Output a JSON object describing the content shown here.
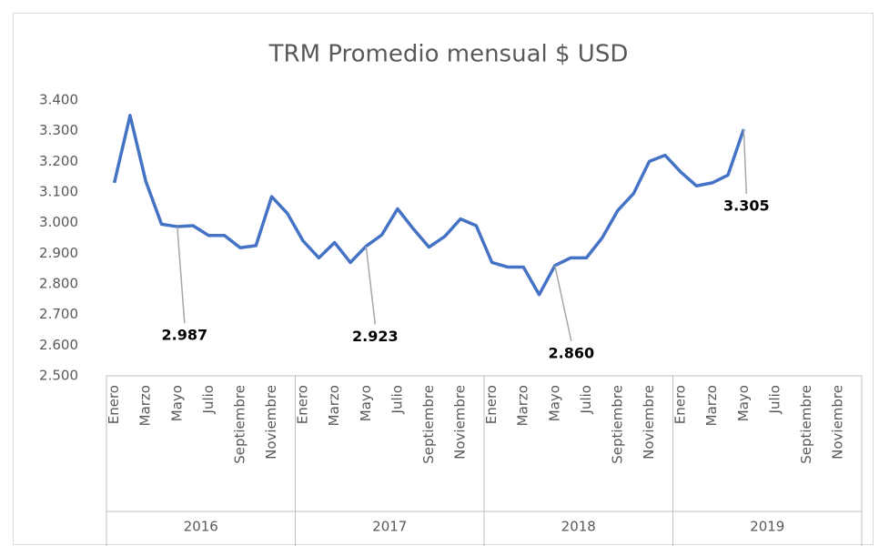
{
  "chart_data": {
    "type": "line",
    "title": "TRM Promedio mensual $ USD",
    "categories": [
      "Enero",
      null,
      "Marzo",
      null,
      "Mayo",
      null,
      "Julio",
      null,
      "Septiembre",
      null,
      "Noviembre",
      null,
      "Enero",
      null,
      "Marzo",
      null,
      "Mayo",
      null,
      "Julio",
      null,
      "Septiembre",
      null,
      "Noviembre",
      null,
      "Enero",
      null,
      "Marzo",
      null,
      "Mayo",
      null,
      "Julio",
      null,
      "Septiembre",
      null,
      "Noviembre",
      null,
      "Enero",
      null,
      "Marzo",
      null,
      "Mayo",
      null,
      "Julio",
      null,
      "Septiembre",
      null,
      "Noviembre",
      null
    ],
    "groups": [
      "2016",
      "2017",
      "2018",
      "2019"
    ],
    "series": [
      {
        "name": "TRM",
        "color": "#4472c4",
        "values": [
          3130,
          3350,
          3135,
          2995,
          2987,
          2990,
          2958,
          2958,
          2918,
          2925,
          3085,
          3030,
          2940,
          2885,
          2935,
          2870,
          2923,
          2960,
          3045,
          2980,
          2920,
          2955,
          3012,
          2990,
          2870,
          2855,
          2855,
          2765,
          2860,
          2885,
          2885,
          2950,
          3040,
          3095,
          3200,
          3220,
          3165,
          3120,
          3130,
          3155,
          3305,
          null,
          null,
          null,
          null,
          null,
          null,
          null
        ],
        "value_labels": [
          null,
          null,
          null,
          null,
          "2.987",
          null,
          null,
          null,
          null,
          null,
          null,
          null,
          null,
          null,
          null,
          null,
          "2.923",
          null,
          null,
          null,
          null,
          null,
          null,
          null,
          null,
          null,
          null,
          null,
          "2.860",
          null,
          null,
          null,
          null,
          null,
          null,
          null,
          null,
          null,
          null,
          null,
          "3.305",
          null,
          null,
          null,
          null,
          null,
          null,
          null
        ]
      }
    ],
    "ylim": [
      2500,
      3400
    ],
    "yticks": [
      {
        "value": 2500,
        "label": "2.500"
      },
      {
        "value": 2600,
        "label": "2.600"
      },
      {
        "value": 2700,
        "label": "2.700"
      },
      {
        "value": 2800,
        "label": "2.800"
      },
      {
        "value": 2900,
        "label": "2.900"
      },
      {
        "value": 3000,
        "label": "3.000"
      },
      {
        "value": 3100,
        "label": "3.100"
      },
      {
        "value": 3200,
        "label": "3.200"
      },
      {
        "value": 3300,
        "label": "3.300"
      },
      {
        "value": 3400,
        "label": "3.400"
      }
    ],
    "grid": false
  }
}
